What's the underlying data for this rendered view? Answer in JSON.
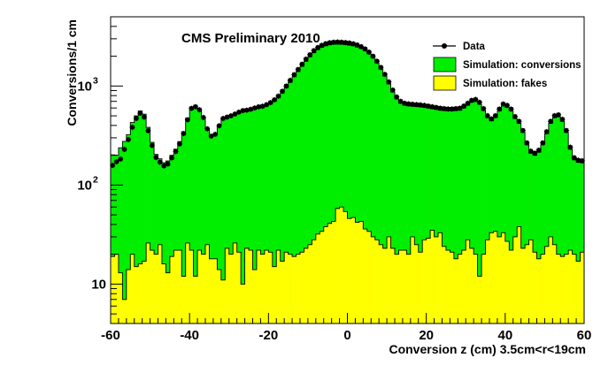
{
  "chart_data": {
    "type": "histogram",
    "title": "CMS Preliminary 2010",
    "xlabel": "Conversion z (cm) 3.5cm<r<19cm",
    "ylabel": "Conversions/1 cm",
    "xlim": [
      -60,
      60
    ],
    "ylim": [
      4,
      5000
    ],
    "yscale": "log",
    "bin_width": 1,
    "x_ticks": [
      -60,
      -40,
      -20,
      0,
      20,
      40,
      60
    ],
    "x_tick_labels": [
      "-60",
      "-40",
      "-20",
      "0",
      "20",
      "40",
      "60"
    ],
    "y_ticks": [
      10,
      100,
      1000
    ],
    "y_tick_labels": [
      "10",
      "10",
      "10"
    ],
    "y_tick_exponents": [
      "",
      "2",
      "3"
    ],
    "legend_position": "top-right",
    "legend": [
      {
        "label": "Data",
        "kind": "marker"
      },
      {
        "label": "Simulation: conversions",
        "kind": "fill",
        "color": "#00ee00"
      },
      {
        "label": "Simulation: fakes",
        "kind": "fill",
        "color": "#ffff00"
      }
    ],
    "colors": {
      "conversions": "#00ee00",
      "fakes": "#ffff00",
      "data": "#000000"
    },
    "bin_centers": [
      -59.5,
      -58.5,
      -57.5,
      -56.5,
      -55.5,
      -54.5,
      -53.5,
      -52.5,
      -51.5,
      -50.5,
      -49.5,
      -48.5,
      -47.5,
      -46.5,
      -45.5,
      -44.5,
      -43.5,
      -42.5,
      -41.5,
      -40.5,
      -39.5,
      -38.5,
      -37.5,
      -36.5,
      -35.5,
      -34.5,
      -33.5,
      -32.5,
      -31.5,
      -30.5,
      -29.5,
      -28.5,
      -27.5,
      -26.5,
      -25.5,
      -24.5,
      -23.5,
      -22.5,
      -21.5,
      -20.5,
      -19.5,
      -18.5,
      -17.5,
      -16.5,
      -15.5,
      -14.5,
      -13.5,
      -12.5,
      -11.5,
      -10.5,
      -9.5,
      -8.5,
      -7.5,
      -6.5,
      -5.5,
      -4.5,
      -3.5,
      -2.5,
      -1.5,
      -0.5,
      0.5,
      1.5,
      2.5,
      3.5,
      4.5,
      5.5,
      6.5,
      7.5,
      8.5,
      9.5,
      10.5,
      11.5,
      12.5,
      13.5,
      14.5,
      15.5,
      16.5,
      17.5,
      18.5,
      19.5,
      20.5,
      21.5,
      22.5,
      23.5,
      24.5,
      25.5,
      26.5,
      27.5,
      28.5,
      29.5,
      30.5,
      31.5,
      32.5,
      33.5,
      34.5,
      35.5,
      36.5,
      37.5,
      38.5,
      39.5,
      40.5,
      41.5,
      42.5,
      43.5,
      44.5,
      45.5,
      46.5,
      47.5,
      48.5,
      49.5,
      50.5,
      51.5,
      52.5,
      53.5,
      54.5,
      55.5,
      56.5,
      57.5,
      58.5,
      59.5
    ],
    "series": [
      {
        "name": "Simulation: conversions",
        "values": [
          202,
          200,
          238,
          276,
          323,
          428,
          500,
          560,
          520,
          383,
          270,
          204,
          184,
          168,
          175,
          200,
          230,
          275,
          346,
          476,
          610,
          630,
          584,
          484,
          372,
          315,
          330,
          400,
          475,
          490,
          498,
          520,
          540,
          558,
          560,
          570,
          585,
          600,
          610,
          630,
          660,
          700,
          760,
          850,
          960,
          1090,
          1240,
          1400,
          1580,
          1780,
          1970,
          2170,
          2330,
          2460,
          2550,
          2610,
          2640,
          2650,
          2640,
          2620,
          2590,
          2550,
          2480,
          2390,
          2270,
          2110,
          1920,
          1710,
          1480,
          1260,
          1050,
          870,
          740,
          670,
          640,
          630,
          625,
          620,
          615,
          610,
          600,
          590,
          580,
          570,
          565,
          560,
          560,
          565,
          570,
          600,
          640,
          685,
          700,
          655,
          565,
          480,
          445,
          480,
          560,
          630,
          610,
          560,
          470,
          420,
          340,
          255,
          210,
          200,
          215,
          255,
          330,
          420,
          480,
          490,
          440,
          340,
          230,
          180,
          170,
          168
        ]
      },
      {
        "name": "Simulation: fakes",
        "values": [
          19,
          20,
          13,
          7,
          14,
          20,
          15,
          16,
          17,
          26,
          22,
          20,
          25,
          16,
          13,
          19,
          22,
          22,
          12,
          26,
          22,
          12,
          22,
          20,
          25,
          18,
          18,
          14,
          11,
          23,
          20,
          26,
          21,
          10,
          23,
          22,
          14,
          22,
          20,
          22,
          21,
          15,
          22,
          17,
          21,
          20,
          19,
          20,
          21,
          23,
          25,
          28,
          32,
          34,
          38,
          41,
          43,
          58,
          60,
          54,
          46,
          47,
          42,
          43,
          36,
          34,
          30,
          28,
          25,
          23,
          30,
          23,
          20,
          22,
          22,
          20,
          30,
          25,
          21,
          28,
          29,
          35,
          30,
          33,
          24,
          22,
          21,
          18,
          20,
          22,
          28,
          23,
          20,
          12,
          20,
          28,
          33,
          34,
          30,
          33,
          27,
          22,
          30,
          38,
          23,
          25,
          28,
          21,
          18,
          20,
          24,
          30,
          25,
          20,
          19,
          20,
          22,
          20,
          17,
          21
        ]
      },
      {
        "name": "Data",
        "kind": "points",
        "values": [
          158,
          172,
          183,
          229,
          288,
          383,
          471,
          531,
          485,
          354,
          251,
          190,
          170,
          156,
          163,
          188,
          218,
          260,
          331,
          456,
          595,
          618,
          576,
          481,
          370,
          312,
          325,
          397,
          470,
          485,
          500,
          521,
          545,
          565,
          570,
          582,
          600,
          617,
          625,
          648,
          680,
          726,
          790,
          885,
          1000,
          1140,
          1300,
          1470,
          1660,
          1870,
          2070,
          2280,
          2450,
          2580,
          2680,
          2740,
          2770,
          2780,
          2770,
          2750,
          2720,
          2670,
          2600,
          2500,
          2370,
          2200,
          2000,
          1780,
          1540,
          1310,
          1100,
          910,
          775,
          700,
          670,
          660,
          655,
          650,
          645,
          638,
          628,
          618,
          608,
          598,
          592,
          587,
          587,
          592,
          598,
          628,
          670,
          717,
          732,
          684,
          592,
          502,
          466,
          502,
          585,
          658,
          638,
          585,
          492,
          440,
          356,
          267,
          220,
          210,
          225,
          267,
          346,
          440,
          502,
          512,
          461,
          356,
          241,
          189,
          178,
          176
        ]
      }
    ]
  }
}
